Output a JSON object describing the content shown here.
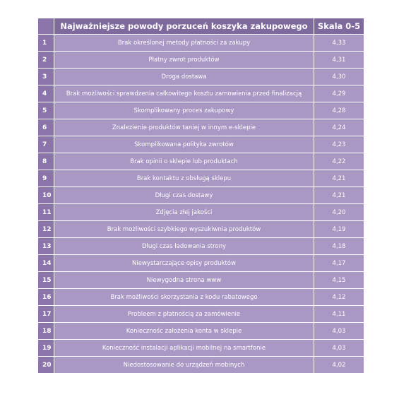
{
  "table": {
    "header": [
      "Najważniejsze powody porzuceń koszyka zakupowego",
      "Skala 0-5"
    ],
    "rows": [
      [
        1,
        "Brak określonej metody płatności za zakupy",
        "4,33"
      ],
      [
        2,
        "Płatny zwrot produktów",
        "4,31"
      ],
      [
        3,
        "Droga dostawa",
        "4,30"
      ],
      [
        4,
        "Brak możliwości sprawdzenia całkowitego kosztu zamowienia przed finalizacją",
        "4,29"
      ],
      [
        5,
        "Skomplikowany proces zakupowy",
        "4,28"
      ],
      [
        6,
        "Znalezienie produktów taniej w innym e-sklepie",
        "4,24"
      ],
      [
        7,
        "Skomplikowana polityka zwrotów",
        "4,23"
      ],
      [
        8,
        "Brak opinii o sklepie lub produktach",
        "4,22"
      ],
      [
        9,
        "Brak kontaktu z obsługą sklepu",
        "4,21"
      ],
      [
        10,
        "Długi czas dostawy",
        "4,21"
      ],
      [
        11,
        "Zdjęcia złej jakości",
        "4,20"
      ],
      [
        12,
        "Brak możliwości szybkiego wyszukiwnia produktów",
        "4,19"
      ],
      [
        13,
        "Długi czas ładowania strony",
        "4,18"
      ],
      [
        14,
        "Niewystarczające opisy produktów",
        "4,17"
      ],
      [
        15,
        "Niewygodna strona www",
        "4,15"
      ],
      [
        16,
        "Brak możliwości skorzystania z kodu rabatowego",
        "4,12"
      ],
      [
        17,
        "Probleem z płatnością za zamówienie",
        "4,11"
      ],
      [
        18,
        "Koniecznośc założenia konta w sklepie",
        "4,03"
      ],
      [
        19,
        "Konieczność instalacji aplikacji mobilnej na smartfonie",
        "4,03"
      ],
      [
        20,
        "Niedostosowanie do urządzeń mobinych",
        "4,02"
      ]
    ]
  }
}
